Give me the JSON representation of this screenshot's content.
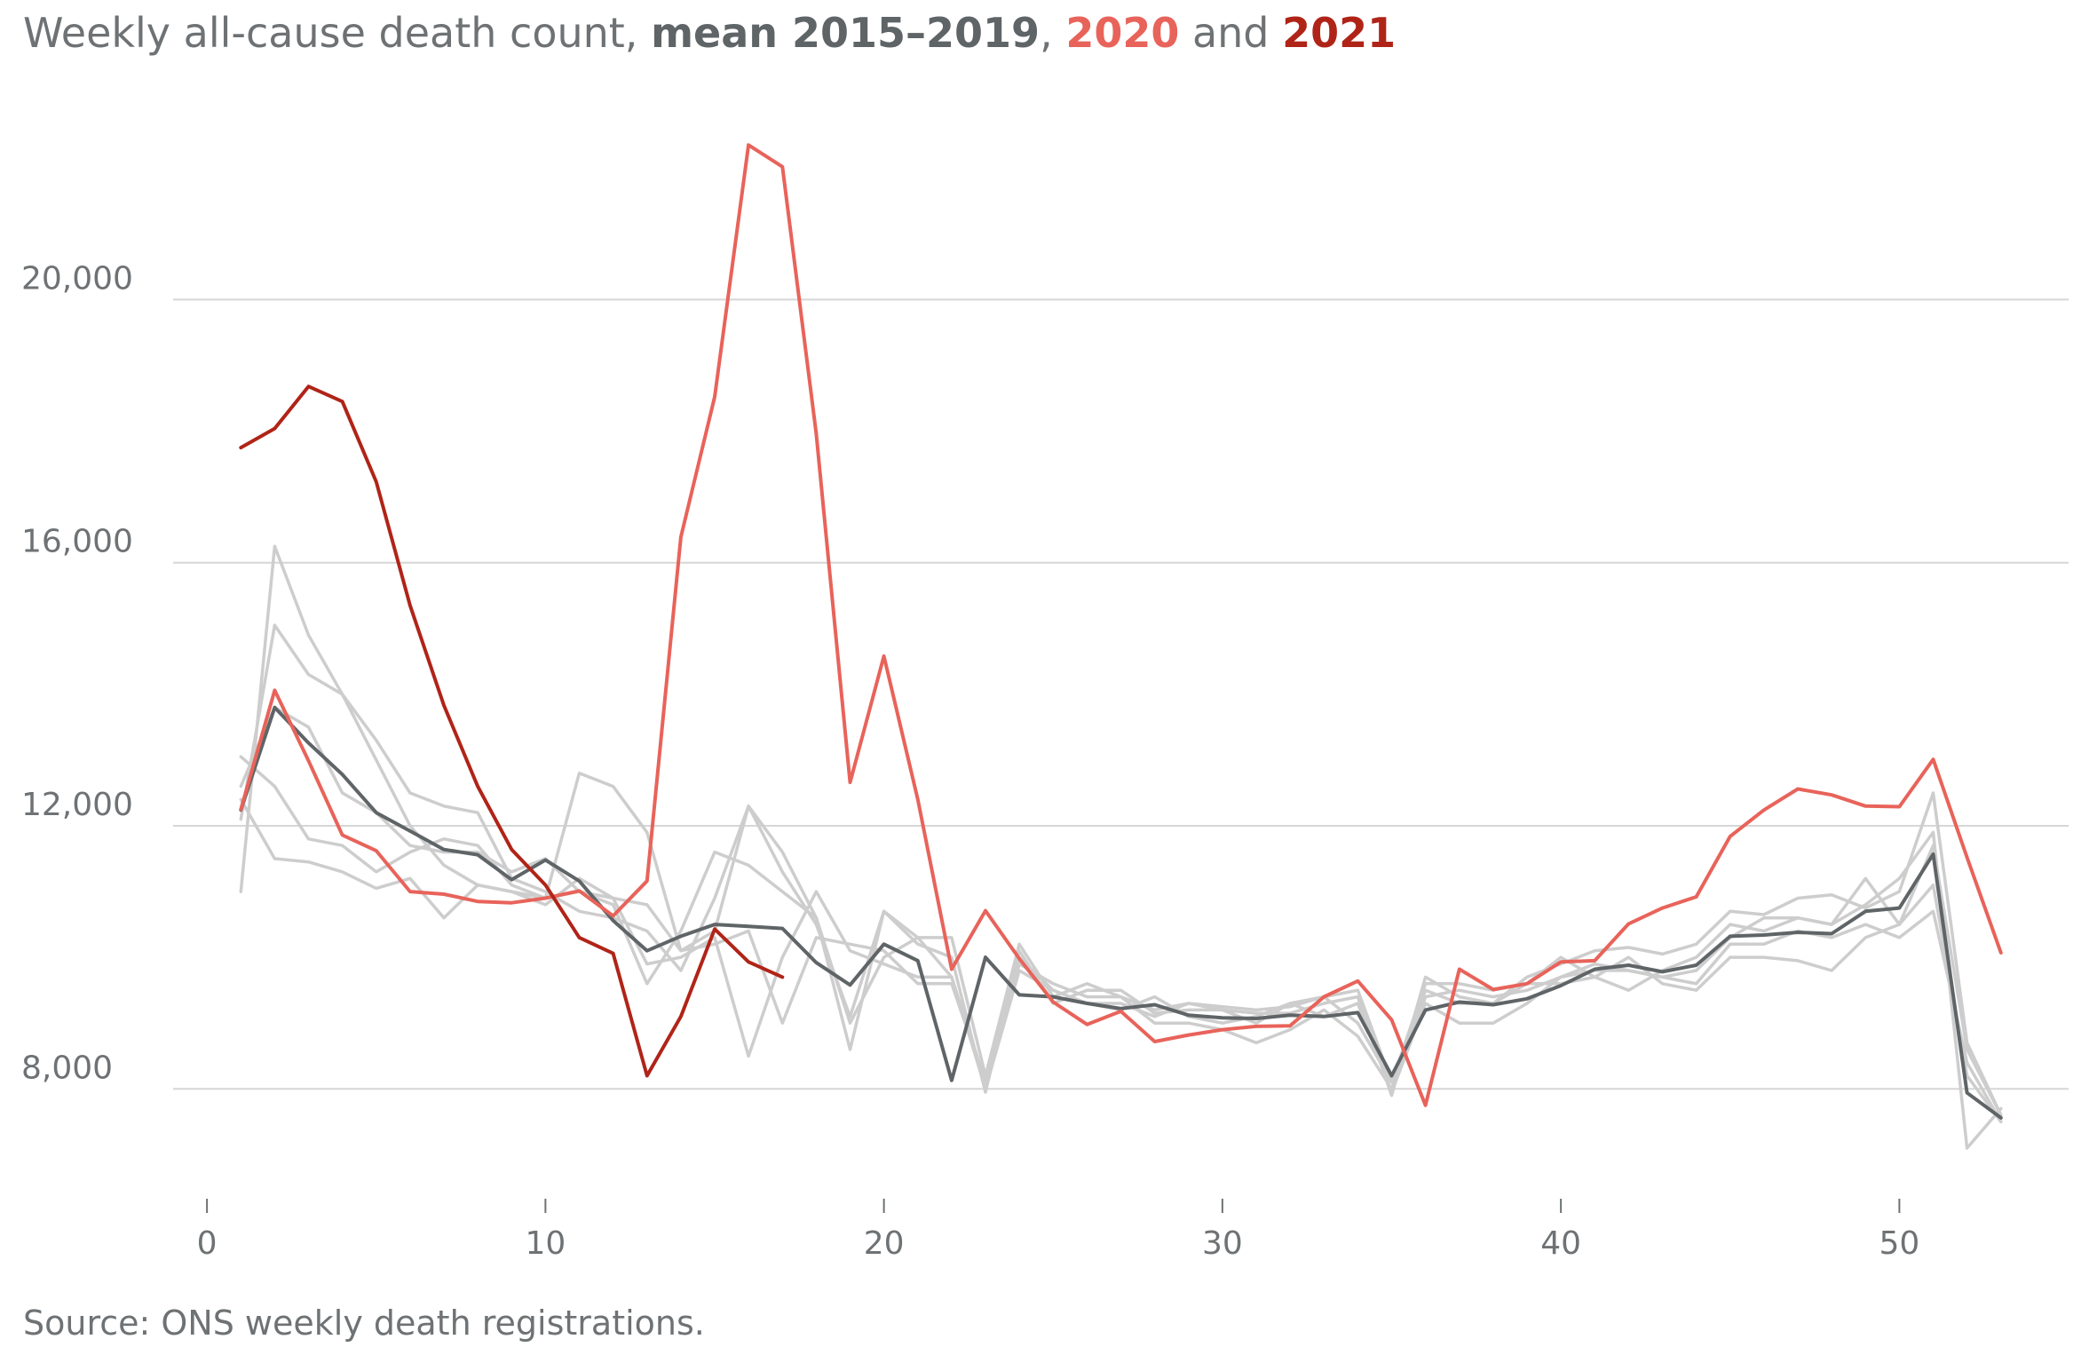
{
  "title": {
    "prefix": "Weekly all-cause death count, ",
    "mean_label": "mean 2015–2019",
    "sep1": ", ",
    "y2020_label": "2020",
    "sep2": " and ",
    "y2021_label": "2021"
  },
  "source": "Source: ONS weekly death registrations.",
  "colors": {
    "mean": "#5f6467",
    "y2020": "#e8635a",
    "y2021": "#b02418",
    "history": "#cdcdcd",
    "grid": "#d6d6d6",
    "text": "#6e7274"
  },
  "chart_data": {
    "type": "line",
    "xlim": [
      -1,
      55
    ],
    "ylim": [
      6600,
      22800
    ],
    "x_ticks": [
      0,
      10,
      20,
      30,
      40,
      50
    ],
    "x_tick_labels": [
      "0",
      "10",
      "20",
      "30",
      "40",
      "50"
    ],
    "y_ticks": [
      8000,
      12000,
      16000,
      20000
    ],
    "y_tick_labels": [
      "8,000",
      "12,000",
      "16,000",
      "20,000"
    ],
    "grid": "horizontal",
    "background_years": [
      {
        "values": [
          11000,
          16250,
          14900,
          14000,
          13000,
          12000,
          11400,
          11100,
          11000,
          10900,
          12800,
          12600,
          11900,
          10100,
          10400,
          12300,
          11300,
          10500,
          9100,
          10700,
          10200,
          10000,
          7950,
          10100,
          9300,
          9500,
          9500,
          9150,
          9200,
          9200,
          9150,
          9150,
          9300,
          9400,
          7900,
          9700,
          9400,
          9300,
          9700,
          9900,
          10100,
          10150,
          10050,
          10200,
          10700,
          10650,
          10900,
          10950,
          10750,
          11000,
          12500,
          8700,
          7600
        ]
      },
      {
        "values": [
          12100,
          15050,
          14300,
          14000,
          13300,
          12500,
          12300,
          12200,
          11200,
          11000,
          10700,
          10600,
          10400,
          9800,
          10900,
          12300,
          11600,
          10600,
          9000,
          10000,
          10300,
          10300,
          8200,
          10200,
          9400,
          9600,
          9400,
          9200,
          9300,
          9250,
          9200,
          9250,
          9400,
          9500,
          8100,
          9500,
          9300,
          9300,
          9600,
          10000,
          9700,
          10000,
          9600,
          9500,
          10000,
          10000,
          9950,
          9800,
          10300,
          10500,
          11700,
          8600,
          7600
        ]
      },
      {
        "values": [
          13050,
          12600,
          11800,
          11700,
          11300,
          11600,
          11800,
          11700,
          11100,
          10900,
          11000,
          10800,
          9600,
          10400,
          11600,
          11400,
          11000,
          10600,
          8600,
          10700,
          10300,
          9700,
          8100,
          10000,
          9500,
          9300,
          9300,
          9100,
          9300,
          9200,
          9000,
          9300,
          9400,
          9000,
          8100,
          9600,
          9600,
          9500,
          9600,
          9600,
          9700,
          9500,
          9800,
          10000,
          10500,
          10400,
          10600,
          10500,
          10800,
          11200,
          11900,
          7100,
          7700
        ]
      },
      {
        "values": [
          12400,
          11500,
          11450,
          11300,
          11050,
          11200,
          10600,
          11100,
          11000,
          10800,
          11200,
          10900,
          9900,
          10000,
          10300,
          8500,
          10000,
          11000,
          10100,
          9900,
          9700,
          9700,
          8000,
          9800,
          9500,
          9300,
          9200,
          9400,
          9100,
          9000,
          9100,
          9300,
          9100,
          9300,
          7950,
          9300,
          9000,
          9000,
          9300,
          9700,
          9900,
          9800,
          9700,
          9600,
          10200,
          10200,
          10400,
          10300,
          10500,
          10300,
          10700,
          8400,
          7500
        ]
      },
      {
        "values": [
          12600,
          13800,
          13500,
          12500,
          12200,
          11700,
          11600,
          11600,
          11300,
          11500,
          11000,
          10900,
          10800,
          10100,
          10200,
          10400,
          9000,
          10300,
          10200,
          10100,
          9600,
          9600,
          8100,
          9900,
          9600,
          9400,
          9400,
          9000,
          9000,
          8900,
          8700,
          8900,
          9200,
          8800,
          8000,
          9400,
          9500,
          9400,
          9500,
          9700,
          9800,
          9800,
          9700,
          9800,
          10300,
          10600,
          10600,
          10500,
          11200,
          10500,
          11100,
          8200,
          7500
        ]
      }
    ],
    "series": [
      {
        "name": "mean 2015–2019",
        "values": [
          12240,
          13800,
          13260,
          12780,
          12200,
          11920,
          11640,
          11560,
          11180,
          11480,
          11160,
          10560,
          10100,
          10320,
          10500,
          10470,
          10440,
          9920,
          9580,
          10200,
          9950,
          8130,
          10000,
          9430,
          9400,
          9300,
          9220,
          9280,
          9120,
          9080,
          9070,
          9120,
          9100,
          9160,
          8200,
          9200,
          9320,
          9280,
          9370,
          9570,
          9820,
          9880,
          9780,
          9880,
          10320,
          10340,
          10380,
          10360,
          10700,
          10750,
          11570,
          7940,
          7560
        ]
      },
      {
        "name": "2020",
        "values": [
          12250,
          14060,
          12990,
          11860,
          11620,
          11000,
          10960,
          10850,
          10830,
          10900,
          11010,
          10630,
          11160,
          16390,
          18520,
          22350,
          22020,
          17960,
          12660,
          14580,
          12400,
          9820,
          10710,
          9980,
          9320,
          8980,
          9180,
          8720,
          8820,
          8900,
          8950,
          8960,
          9400,
          9640,
          9050,
          7750,
          9820,
          9510,
          9600,
          9930,
          9950,
          10510,
          10750,
          10920,
          11840,
          12240,
          12560,
          12470,
          12300,
          12290,
          13010,
          11520,
          10070
        ]
      },
      {
        "name": "2021",
        "values": [
          17750,
          18040,
          18680,
          18450,
          17230,
          15350,
          13830,
          12600,
          11640,
          11100,
          10300,
          10060,
          8200,
          9100,
          10430,
          9930,
          9700
        ]
      }
    ]
  }
}
